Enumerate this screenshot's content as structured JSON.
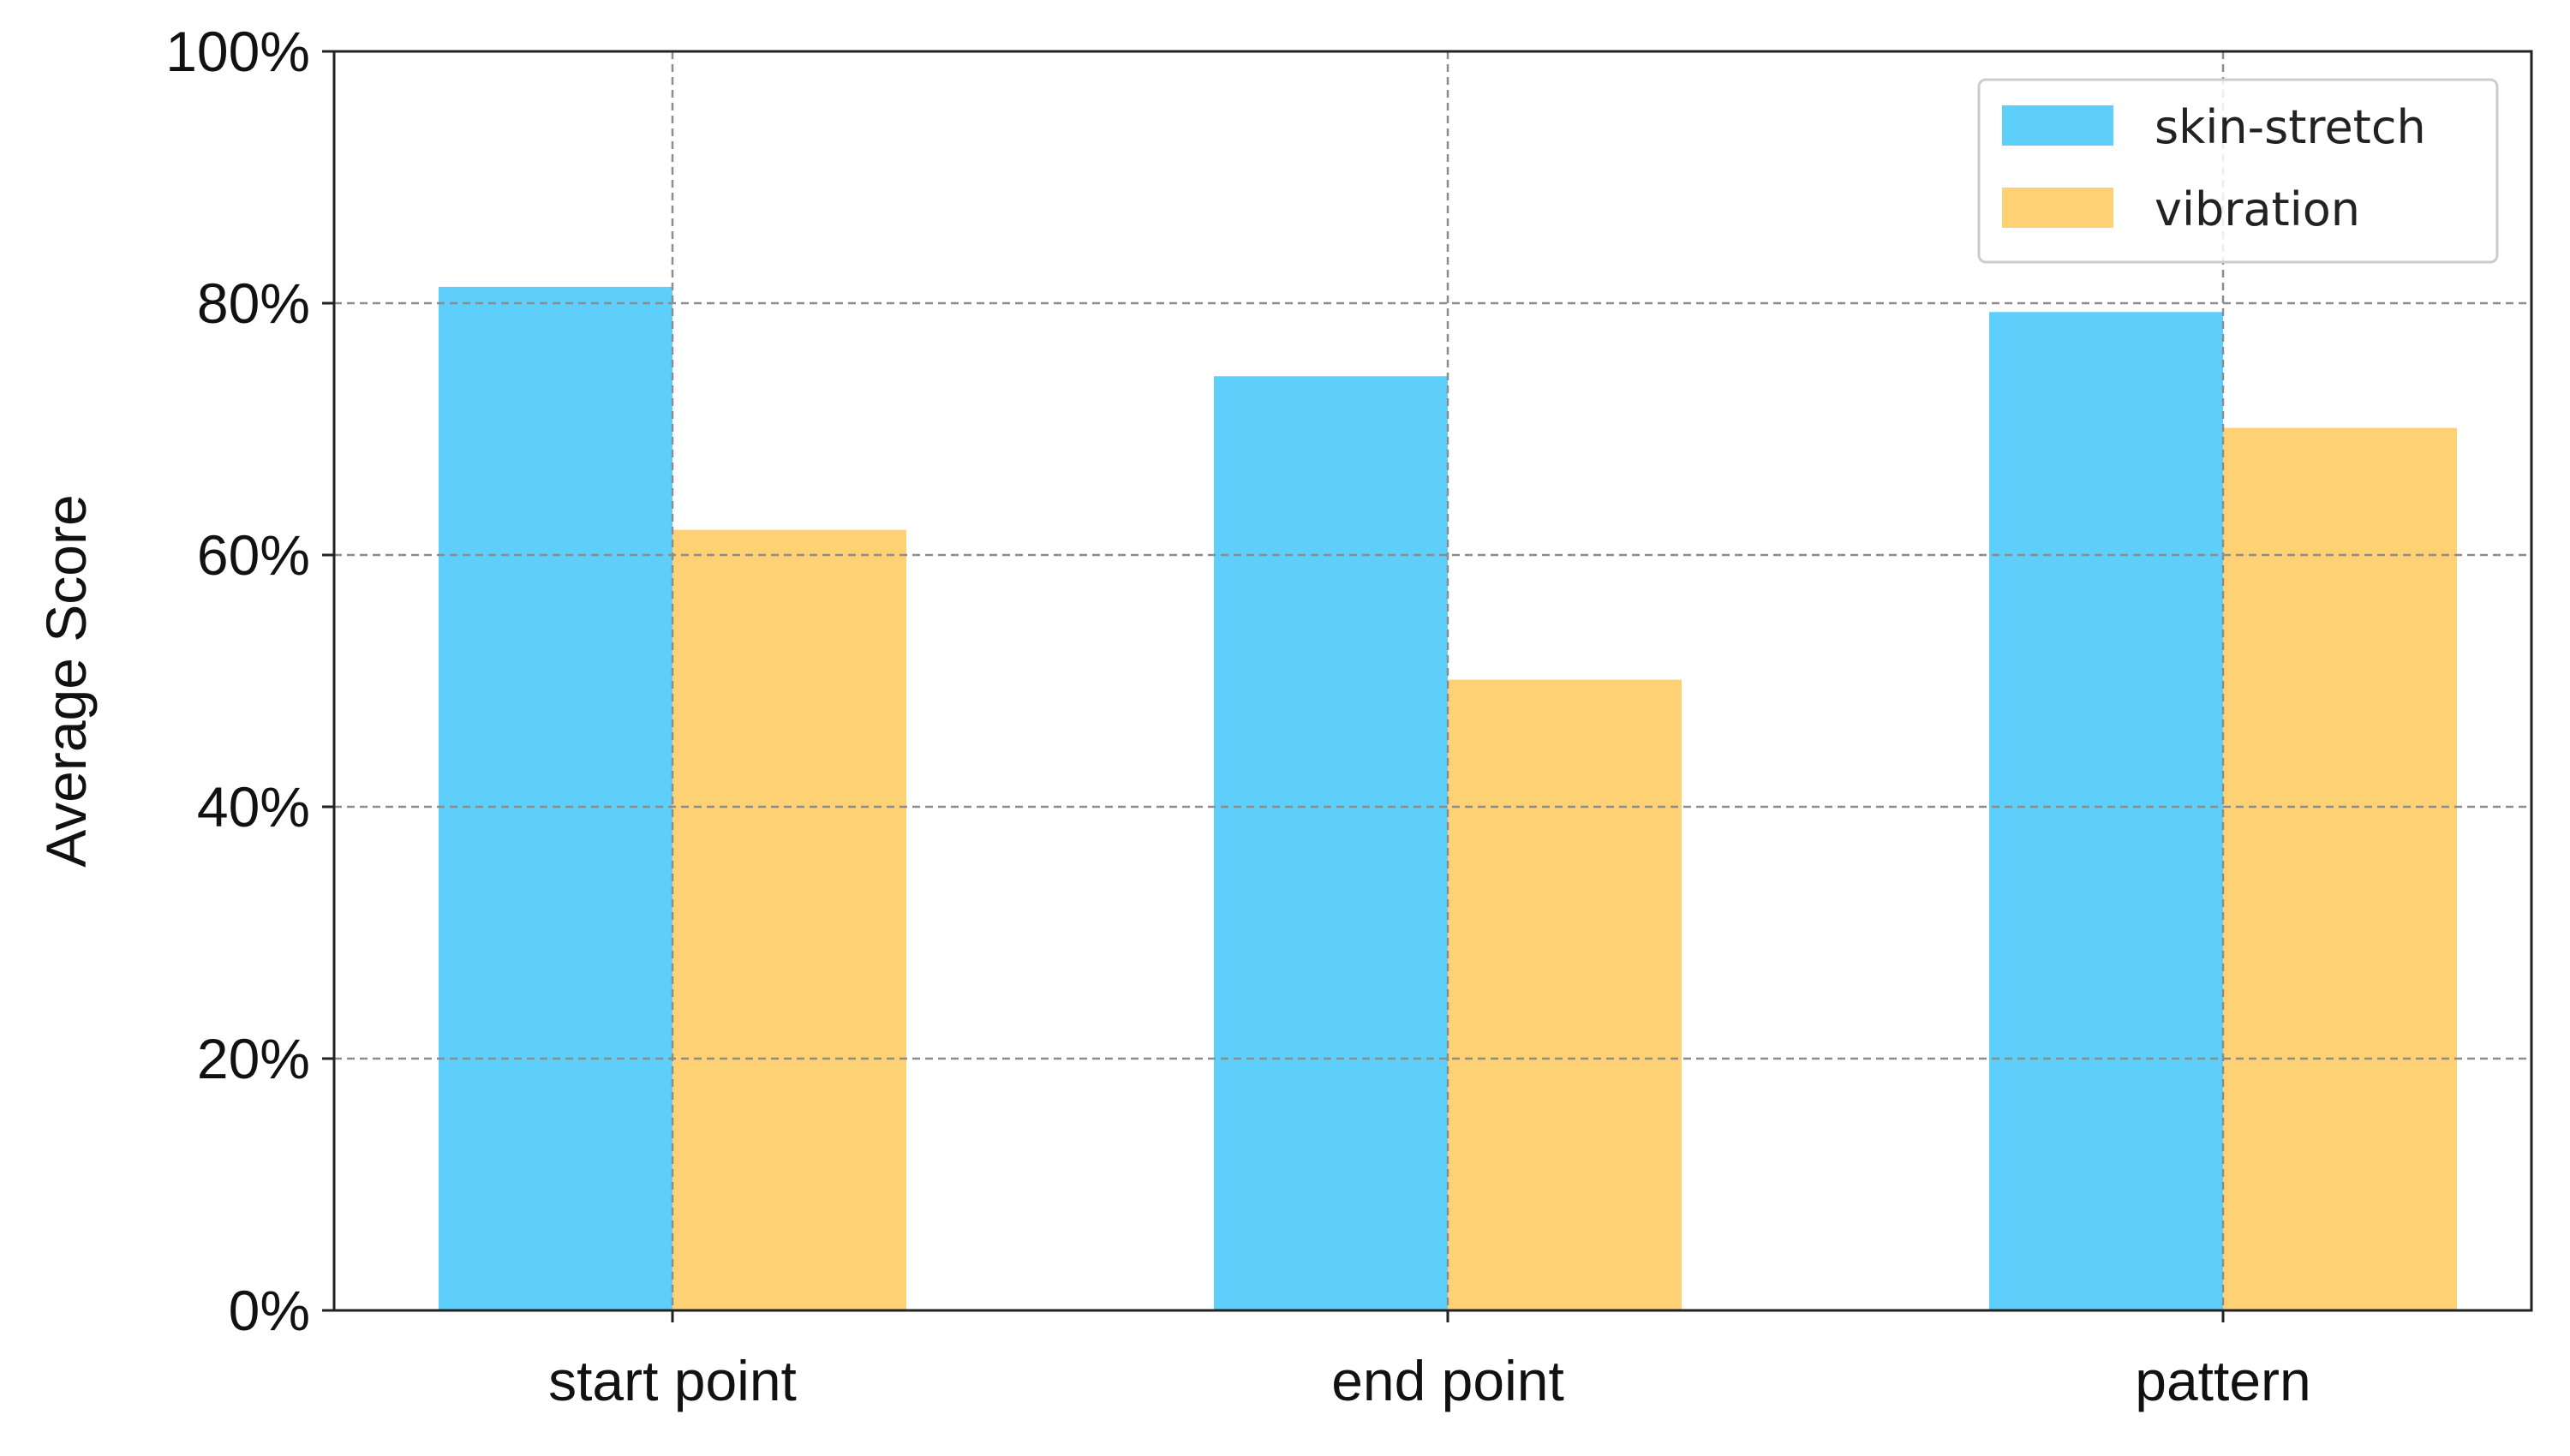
{
  "chart_data": {
    "type": "bar",
    "title": "",
    "xlabel": "",
    "ylabel": "Average Score",
    "categories": [
      "start point",
      "end point",
      "pattern"
    ],
    "series": [
      {
        "name": "skin-stretch",
        "color": "#5ecefb",
        "values": [
          81.3,
          74.2,
          79.3
        ]
      },
      {
        "name": "vibration",
        "color": "#fed274",
        "values": [
          62.0,
          50.1,
          70.1
        ]
      }
    ],
    "ylim": [
      0,
      100
    ],
    "y_ticks": [
      {
        "value": 0,
        "label": "0%"
      },
      {
        "value": 20,
        "label": "20%"
      },
      {
        "value": 40,
        "label": "40%"
      },
      {
        "value": 60,
        "label": "60%"
      },
      {
        "value": 80,
        "label": "80%"
      },
      {
        "value": 100,
        "label": "100%"
      }
    ],
    "grid": true,
    "grid_color": "#8c8c8c",
    "legend_position": "top-right"
  }
}
